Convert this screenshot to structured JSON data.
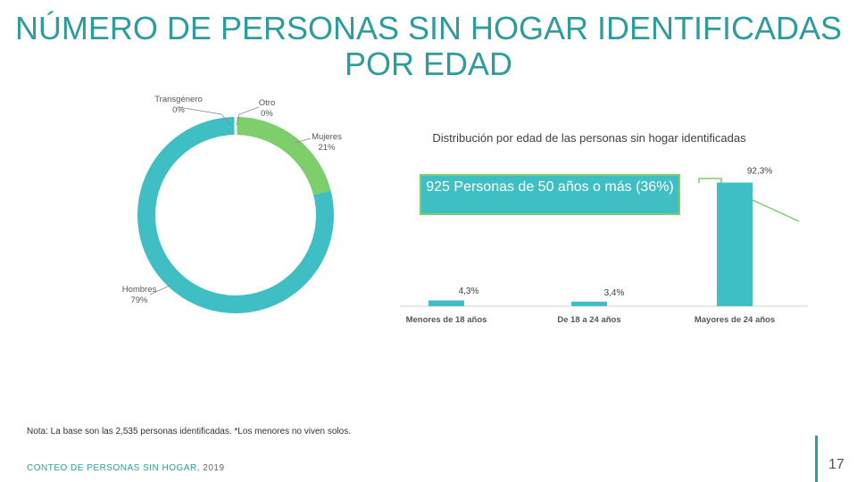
{
  "slide": {
    "title_line1": "NÚMERO DE PERSONAS SIN HOGAR IDENTIFICADAS",
    "title_line2": "POR EDAD",
    "note": "Nota: La base son las 2,535 personas identificadas. *Los menores no viven solos.",
    "footer": "CONTEO DE PERSONAS SIN HOGAR, ",
    "footer_year": "2019",
    "page_number": "17"
  },
  "colors": {
    "title": "#2e9c9c",
    "teal": "#3fbfc4",
    "green": "#7ecf6c"
  },
  "chart_data": [
    {
      "type": "pie",
      "subtype": "donut",
      "slices": [
        {
          "name": "Mujeres",
          "label": "Mujeres",
          "pct_label": "21%",
          "value": 21,
          "color": "#7ecf6c"
        },
        {
          "name": "Hombres",
          "label": "Hombres",
          "pct_label": "79%",
          "value": 79,
          "color": "#3fbfc4"
        },
        {
          "name": "Transgénero",
          "label": "Transgénero",
          "pct_label": "0%",
          "value": 0,
          "color": "#3fbfc4"
        },
        {
          "name": "Otro",
          "label": "Otro",
          "pct_label": "0%",
          "value": 0,
          "color": "#7ecf6c"
        }
      ]
    },
    {
      "type": "bar",
      "title": "Distribución por edad de las personas sin hogar identificadas",
      "categories": [
        "Menores de 18 años",
        "De 18 a 24 años",
        "Mayores de 24 años"
      ],
      "values": [
        4.3,
        3.4,
        92.3
      ],
      "value_labels": [
        "4,3%",
        "3,4%",
        "92,3%"
      ],
      "ylim": [
        0,
        100
      ],
      "callout": "925 Personas de 50 años o más (36%)"
    }
  ]
}
